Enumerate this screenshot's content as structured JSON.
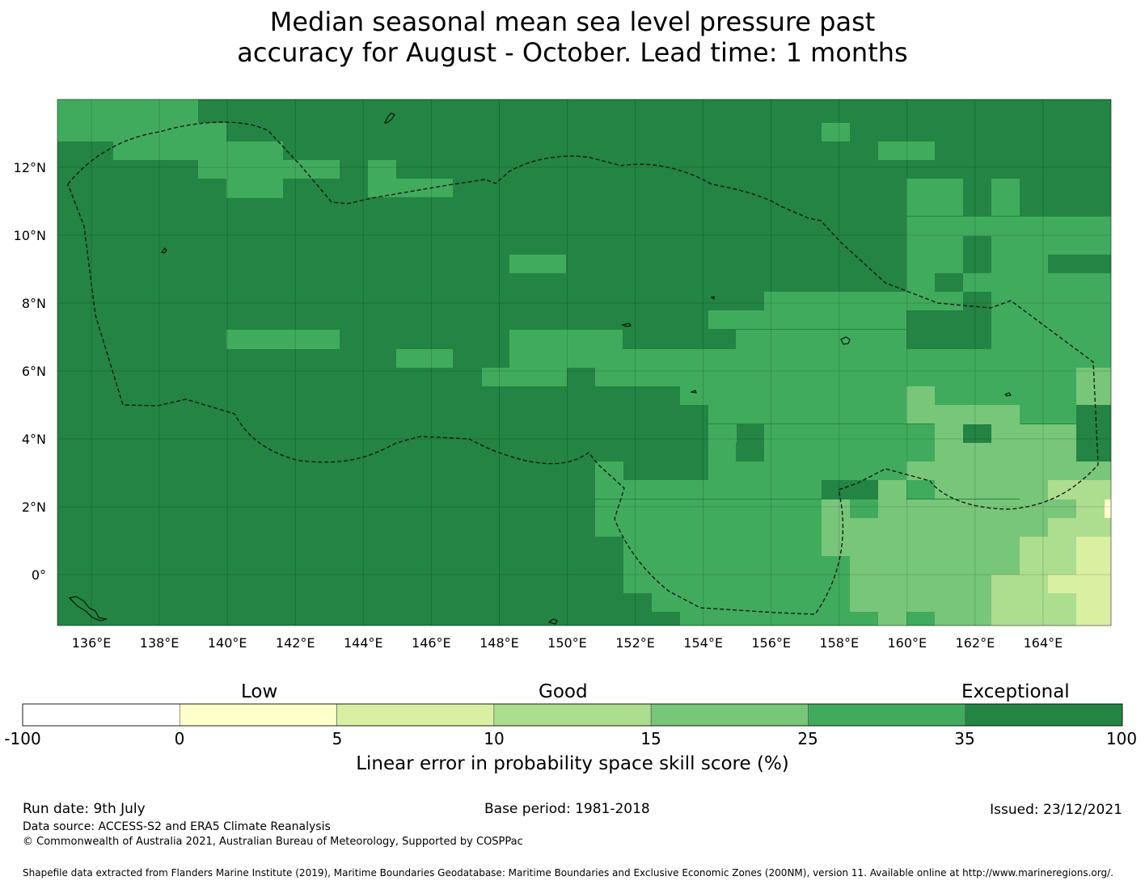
{
  "title_line1": "Median seasonal mean sea level pressure past",
  "title_line2": "accuracy for August - October. Lead time: 1 months",
  "map": {
    "lon_range": [
      135,
      166
    ],
    "lat_range": [
      -1.5,
      14
    ],
    "lon_ticks": [
      "136°E",
      "138°E",
      "140°E",
      "142°E",
      "144°E",
      "146°E",
      "148°E",
      "150°E",
      "152°E",
      "154°E",
      "156°E",
      "158°E",
      "160°E",
      "162°E",
      "164°E"
    ],
    "lat_ticks": [
      "12°N",
      "10°N",
      "8°N",
      "6°N",
      "4°N",
      "2°N",
      "0°"
    ],
    "colors": {
      "exceptional_dark": "#238443",
      "band_25_35": "#41ab5d",
      "band_15_25": "#78c679",
      "band_10_15": "#addd8e",
      "band_5_10": "#d9f0a3",
      "band_0_5": "#ffffcc"
    }
  },
  "colorbar": {
    "categories": [
      "Low",
      "Good",
      "Exceptional"
    ],
    "ticks": [
      "-100",
      "0",
      "5",
      "10",
      "15",
      "25",
      "35",
      "100"
    ],
    "colors": [
      "#ffffff",
      "#ffffcc",
      "#d9f0a3",
      "#addd8e",
      "#78c679",
      "#41ab5d",
      "#238443"
    ],
    "label": "Linear error in probability space skill score (%)"
  },
  "footer": {
    "run_date": "Run date: 9th July",
    "base_period": "Base period: 1981-2018",
    "issued": "Issued: 23/12/2021",
    "data_source": "Data source: ACCESS-S2 and ERA5 Climate Reanalysis",
    "copyright": "© Commonwealth of Australia 2021, Australian Bureau of Meteorology, Supported by COSPPac",
    "shapefile": "Shapefile data extracted from Flanders Marine Institute (2019), Maritime Boundaries Geodatabase: Maritime Boundaries and Exclusive Economic Zones (200NM), version 11. Available online at http://www.marineregions.org/."
  }
}
